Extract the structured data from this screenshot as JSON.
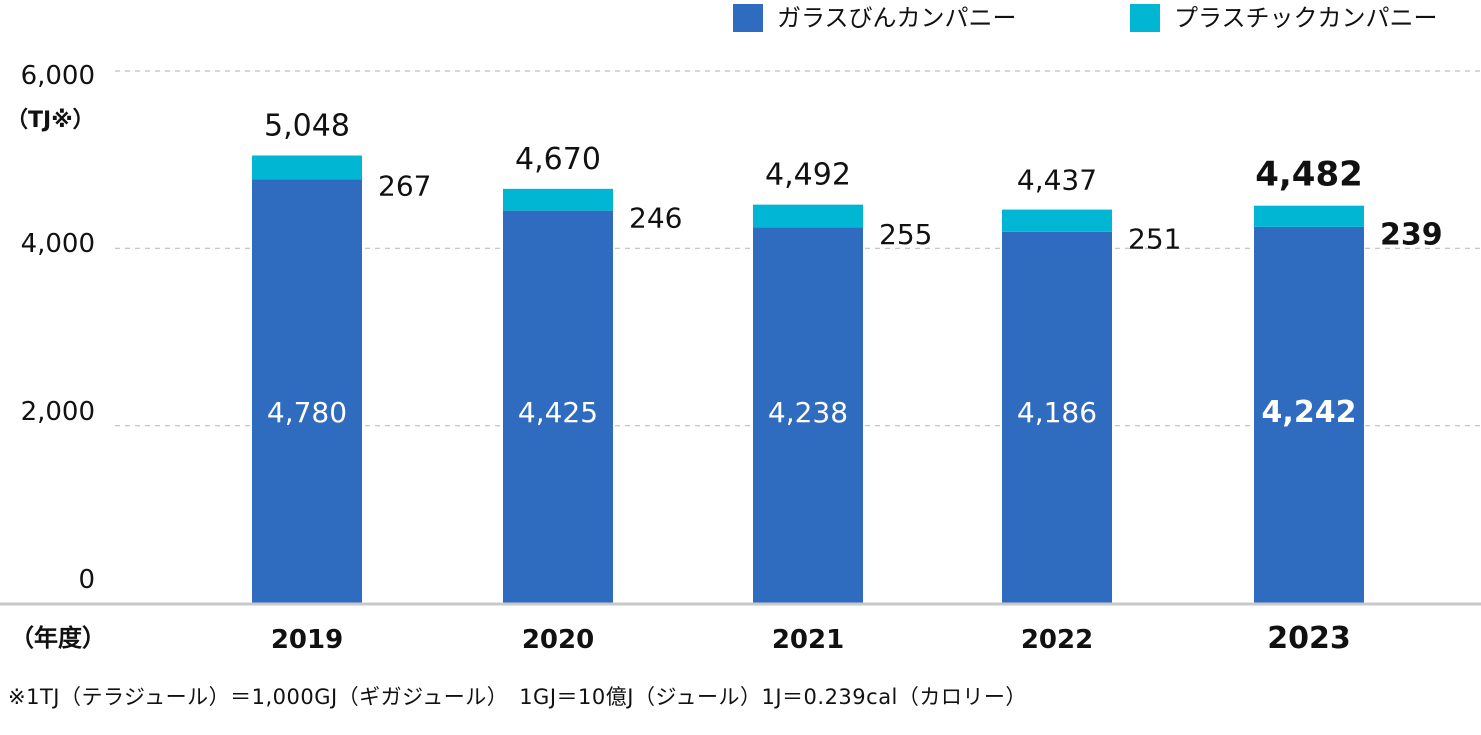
{
  "legend": {
    "glass_label": "ガラスびんカンパニー",
    "plastic_label": "プラスチックカンパニー"
  },
  "colors": {
    "glass": "#2f6bbf",
    "plastic": "#00b6d3",
    "grid": "#bfbfbf",
    "axis": "#c8c8c8"
  },
  "y_unit": "（TJ※）",
  "x_unit": "（年度）",
  "footnote": "※1TJ（テラジュール）＝1,000GJ（ギガジュール）　1GJ＝10億J（ジュール）1J＝0.239cal（カロリー）",
  "chart_data": {
    "type": "bar",
    "stacked": true,
    "categories": [
      "2019",
      "2020",
      "2021",
      "2022",
      "2023"
    ],
    "series": [
      {
        "name": "ガラスびんカンパニー",
        "values": [
          4780,
          4425,
          4238,
          4186,
          4242
        ]
      },
      {
        "name": "プラスチックカンパニー",
        "values": [
          267,
          246,
          255,
          251,
          239
        ]
      }
    ],
    "totals": [
      5048,
      4670,
      4492,
      4437,
      4482
    ],
    "value_labels": {
      "glass": [
        "4,780",
        "4,425",
        "4,238",
        "4,186",
        "4,242"
      ],
      "plastic": [
        "267",
        "246",
        "255",
        "251",
        "239"
      ],
      "totals": [
        "5,048",
        "4,670",
        "4,492",
        "4,437",
        "4,482"
      ]
    },
    "y_ticks": [
      0,
      2000,
      4000,
      6000
    ],
    "y_tick_labels": [
      "0",
      "2,000",
      "4,000",
      "6,000"
    ],
    "ylim": [
      0,
      6000
    ],
    "highlight_category": "2023",
    "grid": true,
    "legend_position": "top-right"
  }
}
